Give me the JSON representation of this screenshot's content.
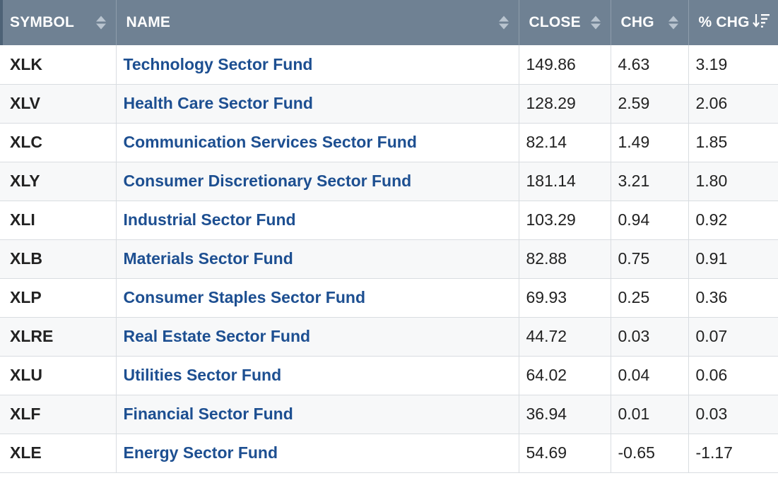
{
  "columns": [
    {
      "label": "SYMBOL"
    },
    {
      "label": "NAME"
    },
    {
      "label": "CLOSE"
    },
    {
      "label": "CHG"
    },
    {
      "label": "% CHG"
    }
  ],
  "rows": [
    {
      "symbol": "XLK",
      "name": "Technology Sector Fund",
      "close": "149.86",
      "chg": "4.63",
      "pct": "3.19"
    },
    {
      "symbol": "XLV",
      "name": "Health Care Sector Fund",
      "close": "128.29",
      "chg": "2.59",
      "pct": "2.06"
    },
    {
      "symbol": "XLC",
      "name": "Communication Services Sector Fund",
      "close": "82.14",
      "chg": "1.49",
      "pct": "1.85"
    },
    {
      "symbol": "XLY",
      "name": "Consumer Discretionary Sector Fund",
      "close": "181.14",
      "chg": "3.21",
      "pct": "1.80"
    },
    {
      "symbol": "XLI",
      "name": "Industrial Sector Fund",
      "close": "103.29",
      "chg": "0.94",
      "pct": "0.92"
    },
    {
      "symbol": "XLB",
      "name": "Materials Sector Fund",
      "close": "82.88",
      "chg": "0.75",
      "pct": "0.91"
    },
    {
      "symbol": "XLP",
      "name": "Consumer Staples Sector Fund",
      "close": "69.93",
      "chg": "0.25",
      "pct": "0.36"
    },
    {
      "symbol": "XLRE",
      "name": "Real Estate Sector Fund",
      "close": "44.72",
      "chg": "0.03",
      "pct": "0.07"
    },
    {
      "symbol": "XLU",
      "name": "Utilities Sector Fund",
      "close": "64.02",
      "chg": "0.04",
      "pct": "0.06"
    },
    {
      "symbol": "XLF",
      "name": "Financial Sector Fund",
      "close": "36.94",
      "chg": "0.01",
      "pct": "0.03"
    },
    {
      "symbol": "XLE",
      "name": "Energy Sector Fund",
      "close": "54.69",
      "chg": "-0.65",
      "pct": "-1.17"
    }
  ],
  "colors": {
    "header_bg": "#6f8193",
    "link": "#1d4f91",
    "row_alt": "#f7f8f9"
  },
  "sort": {
    "column": "% CHG",
    "direction": "descending",
    "icon": "sort-descending-icon"
  }
}
